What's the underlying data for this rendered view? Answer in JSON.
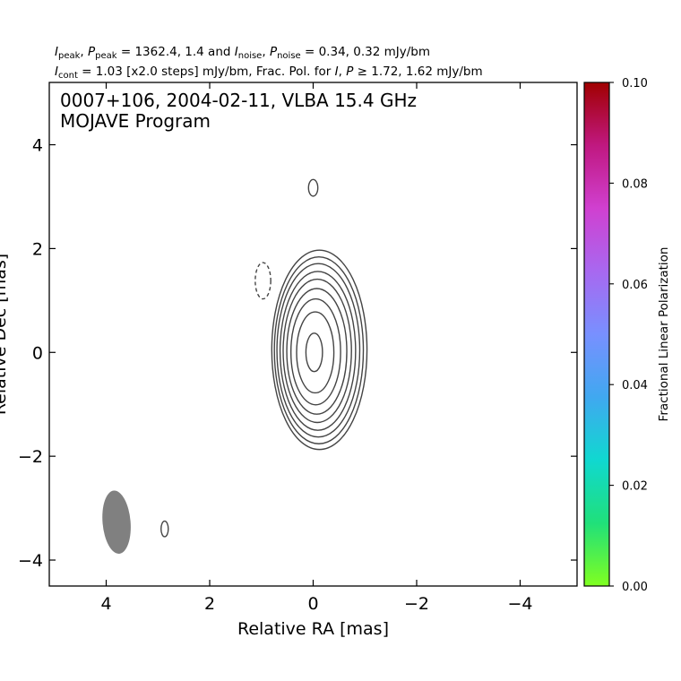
{
  "header": {
    "line1": "I_peak, P_peak = 1362.4, 1.4 and I_noise, P_noise = 0.34, 0.32 mJy/bm",
    "line1_parts": {
      "i_sym": "I",
      "i_peak_sub": "peak",
      "sep1": ", ",
      "p_sym": "P",
      "p_peak_sub": "peak",
      "peak_vals": " = 1362.4, 1.4 and ",
      "i2_sym": "I",
      "i_noise_sub": "noise",
      "sep2": ", ",
      "p2_sym": "P",
      "p_noise_sub": "noise",
      "noise_vals": " = 0.34, 0.32 mJy/bm"
    },
    "line2": "I_cont = 1.03 [x2.0 steps] mJy/bm, Frac. Pol. for I, P ≥ 1.72, 1.62 mJy/bm",
    "line2_parts": {
      "i_sym": "I",
      "cont_sub": "cont",
      "cont_text": " = 1.03 [x2.0 steps] mJy/bm, Frac. Pol. for ",
      "i_sym2": "I",
      "sep": ", ",
      "p_sym": "P",
      "thresh_text": " ≥ 1.72, 1.62 mJy/bm"
    }
  },
  "annotation": {
    "line1": "0007+106, 2004-02-11, VLBA 15.4 GHz",
    "line2": "MOJAVE Program"
  },
  "colors": {
    "contour": "#444444",
    "beam": "#808080",
    "colormap": [
      "#80ff20",
      "#20e07a",
      "#10d8d0",
      "#40a8f0",
      "#7890ff",
      "#a868f0",
      "#d040d0",
      "#c01880",
      "#a00000"
    ]
  },
  "chart_data": {
    "type": "contour",
    "xlabel": "Relative RA [mas]",
    "ylabel": "Relative Dec [mas]",
    "xlim": [
      5.1,
      -5.1
    ],
    "ylim": [
      -4.5,
      5.2
    ],
    "x_ticks": [
      4,
      2,
      0,
      -2,
      -4
    ],
    "x_tick_labels": [
      "4",
      "2",
      "0",
      "−2",
      "−4"
    ],
    "y_ticks": [
      -4,
      -2,
      0,
      2,
      4
    ],
    "y_tick_labels": [
      "−4",
      "−2",
      "0",
      "2",
      "4"
    ],
    "contour_base_mJy_per_beam": 1.03,
    "contour_step_factor": 2.0,
    "core": {
      "x": 0.0,
      "y": 0.0
    },
    "contours": [
      {
        "cx": -0.12,
        "cy": 0.05,
        "rx": 0.92,
        "ry": 1.92,
        "dashed": false
      },
      {
        "cx": -0.11,
        "cy": 0.04,
        "rx": 0.86,
        "ry": 1.8,
        "dashed": false
      },
      {
        "cx": -0.1,
        "cy": 0.04,
        "rx": 0.8,
        "ry": 1.67,
        "dashed": false
      },
      {
        "cx": -0.09,
        "cy": 0.03,
        "rx": 0.73,
        "ry": 1.53,
        "dashed": false
      },
      {
        "cx": -0.08,
        "cy": 0.03,
        "rx": 0.66,
        "ry": 1.38,
        "dashed": false
      },
      {
        "cx": -0.07,
        "cy": 0.02,
        "rx": 0.58,
        "ry": 1.21,
        "dashed": false
      },
      {
        "cx": -0.05,
        "cy": 0.01,
        "rx": 0.48,
        "ry": 1.02,
        "dashed": false
      },
      {
        "cx": -0.04,
        "cy": 0.0,
        "rx": 0.36,
        "ry": 0.78,
        "dashed": false
      },
      {
        "cx": -0.02,
        "cy": 0.0,
        "rx": 0.16,
        "ry": 0.37,
        "dashed": false
      },
      {
        "cx": 0.0,
        "cy": 3.17,
        "rx": 0.09,
        "ry": 0.16,
        "dashed": false
      },
      {
        "cx": 2.87,
        "cy": -3.4,
        "rx": 0.07,
        "ry": 0.15,
        "dashed": false
      },
      {
        "cx": 0.97,
        "cy": 1.38,
        "rx": 0.15,
        "ry": 0.35,
        "dashed": true
      }
    ],
    "beam": {
      "x": 3.8,
      "y": -3.27,
      "major_mas": 1.22,
      "minor_mas": 0.54,
      "pa_deg": -5
    },
    "colorbar": {
      "label": "Fractional Linear Polarization",
      "min": 0.0,
      "max": 0.1,
      "ticks": [
        0.0,
        0.02,
        0.04,
        0.06,
        0.08,
        0.1
      ],
      "tick_labels": [
        "0.00",
        "0.02",
        "0.04",
        "0.06",
        "0.08",
        "0.10"
      ]
    }
  }
}
